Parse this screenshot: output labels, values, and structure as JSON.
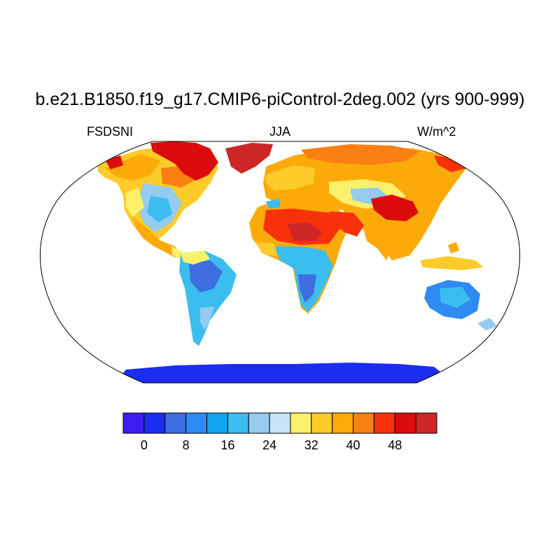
{
  "title": "b.e21.B1850.f19_g17.CMIP6-piControl-2deg.002 (yrs 900-999)",
  "left_label": "FSDSNI",
  "center_label": "JJA",
  "right_label": "W/m^2",
  "colorbar": {
    "colors": [
      "#3a1ff0",
      "#1a2df0",
      "#3f6ee0",
      "#2f8af2",
      "#12a6f2",
      "#3cbdf0",
      "#94cbee",
      "#c6e4f4",
      "#fdf06a",
      "#fdcb2a",
      "#fcaa0a",
      "#fb7f12",
      "#f7320a",
      "#dc0c0c",
      "#cc2626"
    ],
    "levels": [
      -4,
      0,
      4,
      8,
      12,
      16,
      20,
      24,
      28,
      32,
      36,
      40,
      44,
      48,
      52
    ],
    "tick_labels": [
      "0",
      "8",
      "16",
      "24",
      "32",
      "40",
      "48"
    ]
  },
  "chart_data": {
    "type": "heatmap",
    "variable": "FSDSNI",
    "season": "JJA",
    "units": "W/m^2",
    "projection": "Robinson",
    "regions": [
      {
        "region": "Antarctica",
        "value": 2
      },
      {
        "region": "Greenland",
        "value": 50
      },
      {
        "region": "Canadian Arctic Archipelago",
        "value": 48
      },
      {
        "region": "Alaska / northern Canada",
        "value": 34
      },
      {
        "region": "central Canada",
        "value": 38
      },
      {
        "region": "eastern United States",
        "value": 20
      },
      {
        "region": "western United States",
        "value": 32
      },
      {
        "region": "Mexico",
        "value": 34
      },
      {
        "region": "Central America",
        "value": 30
      },
      {
        "region": "Amazon basin",
        "value": 12
      },
      {
        "region": "southern South America",
        "value": 18
      },
      {
        "region": "Sahel",
        "value": 36
      },
      {
        "region": "Sahara",
        "value": 48
      },
      {
        "region": "central Africa",
        "value": 22
      },
      {
        "region": "southern Africa",
        "value": 10
      },
      {
        "region": "Europe",
        "value": 30
      },
      {
        "region": "northern Siberia",
        "value": 40
      },
      {
        "region": "central Asia",
        "value": 34
      },
      {
        "region": "Tibetan Plateau",
        "value": 50
      },
      {
        "region": "Arabian Peninsula",
        "value": 40
      },
      {
        "region": "India",
        "value": 36
      },
      {
        "region": "Southeast Asia",
        "value": 34
      },
      {
        "region": "Australia",
        "value": 14
      }
    ]
  }
}
